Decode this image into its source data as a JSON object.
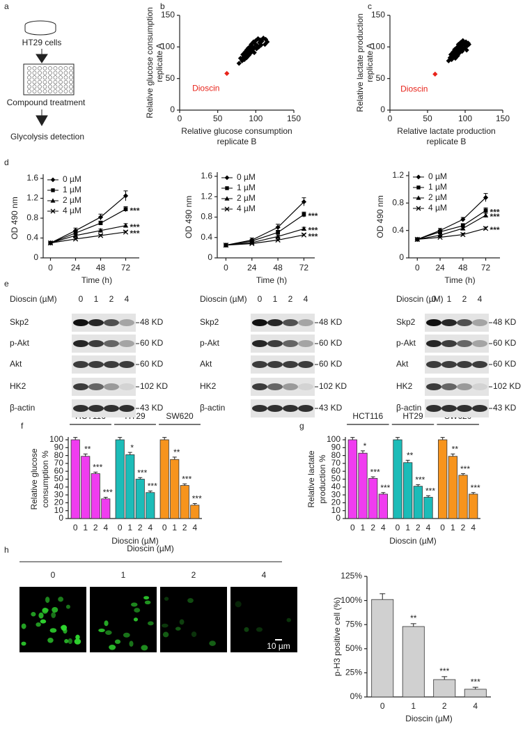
{
  "panel_labels": [
    "a",
    "b",
    "c",
    "d",
    "e",
    "f",
    "g",
    "h"
  ],
  "schematic": {
    "cells": "HT29 cells",
    "step1": "Compound treatment",
    "step2": "Glycolysis detection"
  },
  "blots": [
    {
      "title": "Dioscin (µM)",
      "lanes": [
        "0",
        "1",
        "2",
        "4"
      ],
      "rows": [
        {
          "label": "Skp2",
          "size": "48 KD"
        },
        {
          "label": "p-Akt",
          "size": "60 KD"
        },
        {
          "label": "Akt",
          "size": "60 KD"
        },
        {
          "label": "HK2",
          "size": "102 KD"
        },
        {
          "label": "β-actin",
          "size": "43 KD"
        }
      ]
    },
    {
      "title": "Dioscin (µM)",
      "lanes": [
        "0",
        "1",
        "2",
        "4"
      ],
      "rows": [
        {
          "label": "Skp2",
          "size": "48 KD"
        },
        {
          "label": "p-Akt",
          "size": "60 KD"
        },
        {
          "label": "Akt",
          "size": "60 KD"
        },
        {
          "label": "HK2",
          "size": "102 KD"
        },
        {
          "label": "β-actin",
          "size": "43 KD"
        }
      ]
    },
    {
      "title": "Dioscin (µM)",
      "lanes": [
        "0",
        "1",
        "2",
        "4"
      ],
      "rows": [
        {
          "label": "Skp2",
          "size": "48 KD"
        },
        {
          "label": "p-Akt",
          "size": "60 KD"
        },
        {
          "label": "Akt",
          "size": "60 KD"
        },
        {
          "label": "HK2",
          "size": "102 KD"
        },
        {
          "label": "β-actin",
          "size": "43 KD"
        }
      ]
    }
  ],
  "microscopy": {
    "title": "Dioscin (µM)",
    "panels": [
      "0",
      "1",
      "2",
      "4"
    ],
    "scale": "10 µm"
  },
  "chart_data": [
    {
      "type": "scatter",
      "xlabel": [
        "Relative glucose consumption",
        "replicate B"
      ],
      "ylabel": [
        "Relative glucose consumption",
        "replicate A"
      ],
      "xlim": [
        0,
        150
      ],
      "ylim": [
        0,
        150
      ],
      "xticks": [
        0,
        50,
        100,
        150
      ],
      "yticks": [
        0,
        50,
        100,
        150
      ],
      "series": [
        {
          "color": "#000000",
          "x": [
            78,
            80,
            82,
            83,
            84,
            85,
            86,
            86,
            87,
            88,
            88,
            89,
            90,
            90,
            91,
            92,
            92,
            93,
            94,
            94,
            95,
            95,
            96,
            97,
            98,
            98,
            99,
            100,
            101,
            102,
            103,
            104,
            105,
            106,
            107,
            108,
            110,
            112,
            113,
            115
          ],
          "values": [
            74,
            82,
            78,
            88,
            84,
            80,
            92,
            86,
            90,
            83,
            95,
            88,
            98,
            92,
            87,
            100,
            94,
            90,
            104,
            97,
            93,
            101,
            96,
            108,
            99,
            91,
            105,
            110,
            97,
            102,
            113,
            100,
            107,
            111,
            103,
            109,
            114,
            104,
            112,
            108
          ]
        },
        {
          "color": "#e8231a",
          "x": [
            62
          ],
          "values": [
            58
          ]
        }
      ],
      "annotations": [
        "Dioscin"
      ]
    },
    {
      "type": "scatter",
      "xlabel": [
        "Relative lactate production",
        "replicate B"
      ],
      "ylabel": [
        "Relative lactate production",
        "replicate A"
      ],
      "xlim": [
        0,
        150
      ],
      "ylim": [
        0,
        150
      ],
      "xticks": [
        0,
        50,
        100,
        150
      ],
      "yticks": [
        0,
        50,
        100,
        150
      ],
      "series": [
        {
          "color": "#000000",
          "x": [
            78,
            80,
            81,
            82,
            83,
            84,
            85,
            86,
            86,
            87,
            88,
            88,
            89,
            90,
            90,
            91,
            92,
            92,
            93,
            94,
            94,
            95,
            96,
            96,
            97,
            98,
            99,
            100,
            101,
            102,
            103,
            104,
            105
          ],
          "values": [
            78,
            83,
            88,
            80,
            86,
            92,
            84,
            90,
            96,
            82,
            94,
            88,
            99,
            86,
            93,
            104,
            97,
            90,
            101,
            95,
            107,
            99,
            93,
            103,
            110,
            97,
            105,
            100,
            108,
            95,
            102,
            106,
            104
          ]
        },
        {
          "color": "#e8231a",
          "x": [
            60
          ],
          "values": [
            57
          ]
        }
      ],
      "annotations": [
        "Dioscin"
      ]
    },
    {
      "type": "line",
      "xlabel": "Time (h)",
      "ylabel": "OD 490 nm",
      "x": [
        0,
        24,
        48,
        72
      ],
      "xlim": [
        -7,
        85
      ],
      "xticks": [
        0,
        24,
        48,
        72
      ],
      "ylim": [
        0,
        1.6
      ],
      "yticks": [
        0,
        0.4,
        0.8,
        1.2,
        1.6
      ],
      "legend": "upper left",
      "series": [
        {
          "name": "0 µM",
          "color": "#000000",
          "marker": "diamond",
          "values": [
            0.3,
            0.55,
            0.82,
            1.25
          ],
          "errors": [
            0.02,
            0.05,
            0.06,
            0.1
          ]
        },
        {
          "name": "1 µM",
          "color": "#000000",
          "marker": "square",
          "values": [
            0.3,
            0.5,
            0.7,
            0.98
          ],
          "errors": [
            0.02,
            0.04,
            0.04,
            0.05
          ],
          "significance": "***"
        },
        {
          "name": "2 µM",
          "color": "#000000",
          "marker": "triangle",
          "values": [
            0.3,
            0.45,
            0.55,
            0.65
          ],
          "errors": [
            0.02,
            0.03,
            0.03,
            0.04
          ],
          "significance": "***"
        },
        {
          "name": "4 µM",
          "color": "#000000",
          "marker": "x",
          "values": [
            0.3,
            0.38,
            0.45,
            0.52
          ],
          "errors": [
            0.01,
            0.02,
            0.02,
            0.02
          ],
          "significance": "***"
        }
      ]
    },
    {
      "type": "line",
      "xlabel": "Time (h)",
      "ylabel": "OD 490 nm",
      "x": [
        0,
        24,
        48,
        72
      ],
      "xlim": [
        -8,
        82
      ],
      "xticks": [
        0,
        24,
        48,
        72
      ],
      "ylim": [
        0,
        1.6
      ],
      "yticks": [
        0,
        0.4,
        0.8,
        1.2,
        1.6
      ],
      "legend": "upper left",
      "series": [
        {
          "name": "0 µM",
          "color": "#000000",
          "marker": "diamond",
          "values": [
            0.25,
            0.35,
            0.6,
            1.1
          ],
          "errors": [
            0.01,
            0.04,
            0.06,
            0.08
          ]
        },
        {
          "name": "1 µM",
          "color": "#000000",
          "marker": "square",
          "values": [
            0.25,
            0.33,
            0.5,
            0.85
          ],
          "errors": [
            0.01,
            0.03,
            0.04,
            0.05
          ],
          "significance": "***"
        },
        {
          "name": "2 µM",
          "color": "#000000",
          "marker": "triangle",
          "values": [
            0.25,
            0.3,
            0.42,
            0.57
          ],
          "errors": [
            0.01,
            0.02,
            0.03,
            0.03
          ],
          "significance": "***"
        },
        {
          "name": "4 µM",
          "color": "#000000",
          "marker": "x",
          "values": [
            0.25,
            0.28,
            0.35,
            0.45
          ],
          "errors": [
            0.01,
            0.02,
            0.02,
            0.02
          ],
          "significance": "***"
        }
      ]
    },
    {
      "type": "line",
      "xlabel": "Time (h)",
      "ylabel": "OD 490 nm",
      "x": [
        0,
        24,
        48,
        72
      ],
      "xlim": [
        -9,
        87
      ],
      "xticks": [
        0,
        24,
        48,
        72
      ],
      "ylim": [
        0,
        1.2
      ],
      "yticks": [
        0,
        0.4,
        0.8,
        1.2
      ],
      "legend": "upper left",
      "series": [
        {
          "name": "0 µM",
          "color": "#000000",
          "marker": "diamond",
          "values": [
            0.27,
            0.4,
            0.56,
            0.88
          ],
          "errors": [
            0.01,
            0.03,
            0.03,
            0.06
          ]
        },
        {
          "name": "1 µM",
          "color": "#000000",
          "marker": "square",
          "values": [
            0.27,
            0.38,
            0.47,
            0.69
          ],
          "errors": [
            0.01,
            0.02,
            0.03,
            0.04
          ],
          "significance": "***"
        },
        {
          "name": "2 µM",
          "color": "#000000",
          "marker": "triangle",
          "values": [
            0.27,
            0.33,
            0.43,
            0.62
          ],
          "errors": [
            0.01,
            0.02,
            0.02,
            0.03
          ],
          "significance": "***"
        },
        {
          "name": "4 µM",
          "color": "#000000",
          "marker": "x",
          "values": [
            0.27,
            0.3,
            0.34,
            0.43
          ],
          "errors": [
            0.01,
            0.01,
            0.02,
            0.02
          ],
          "significance": "***"
        }
      ]
    },
    {
      "type": "grouped_bar",
      "xlabel": "Dioscin (µM)",
      "ylabel": [
        "Relative glucose",
        "consumption %"
      ],
      "categories": [
        "0",
        "1",
        "2",
        "4"
      ],
      "ylim": [
        0,
        100
      ],
      "yticks": [
        0,
        10,
        20,
        30,
        40,
        50,
        60,
        70,
        80,
        90,
        100
      ],
      "groups": [
        {
          "name": "HCT116",
          "color": "#f03cf0",
          "values": [
            100,
            79,
            57,
            25
          ],
          "errors": [
            3,
            3,
            2,
            2
          ],
          "significance": [
            null,
            "**",
            "***",
            "***"
          ]
        },
        {
          "name": "HT29",
          "color": "#1cbcb8",
          "values": [
            100,
            81,
            50,
            33
          ],
          "errors": [
            3,
            3,
            2,
            2
          ],
          "significance": [
            null,
            "*",
            "***",
            "***"
          ]
        },
        {
          "name": "SW620",
          "color": "#f7941d",
          "values": [
            100,
            75,
            42,
            17
          ],
          "errors": [
            3,
            3,
            2,
            2
          ],
          "significance": [
            null,
            "**",
            "***",
            "***"
          ]
        }
      ]
    },
    {
      "type": "grouped_bar",
      "xlabel": "Dioscin (µM)",
      "ylabel": [
        "Relative lactate",
        "production %"
      ],
      "categories": [
        "0",
        "1",
        "2",
        "4"
      ],
      "ylim": [
        0,
        100
      ],
      "yticks": [
        0,
        10,
        20,
        30,
        40,
        50,
        60,
        70,
        80,
        90,
        100
      ],
      "groups": [
        {
          "name": "HCT116",
          "color": "#f03cf0",
          "values": [
            100,
            83,
            51,
            31
          ],
          "errors": [
            3,
            3,
            2,
            2
          ],
          "significance": [
            null,
            "*",
            "***",
            "***"
          ]
        },
        {
          "name": "HT29",
          "color": "#1cbcb8",
          "values": [
            100,
            71,
            41,
            27
          ],
          "errors": [
            3,
            3,
            2,
            2
          ],
          "significance": [
            null,
            "**",
            "***",
            "***"
          ]
        },
        {
          "name": "SW620",
          "color": "#f7941d",
          "values": [
            100,
            79,
            55,
            31
          ],
          "errors": [
            3,
            3,
            2,
            2
          ],
          "significance": [
            null,
            "**",
            "***",
            "***"
          ]
        }
      ]
    },
    {
      "type": "bar",
      "xlabel": "Dioscin (µM)",
      "ylabel": "p-H3 positive cell (%)",
      "categories": [
        "0",
        "1",
        "2",
        "4"
      ],
      "color": "#d0d0d0",
      "values": [
        101,
        73,
        18,
        8
      ],
      "errors": [
        6,
        3,
        3,
        2
      ],
      "significance": [
        null,
        "**",
        "***",
        "***"
      ],
      "ylim": [
        0,
        125
      ],
      "yticks": [
        {
          "value": 0,
          "label": "0%"
        },
        {
          "value": 25,
          "label": "25%"
        },
        {
          "value": 50,
          "label": "50%"
        },
        {
          "value": 75,
          "label": "75%"
        },
        {
          "value": 100,
          "label": "100%"
        },
        {
          "value": 125,
          "label": "125%"
        }
      ]
    }
  ]
}
